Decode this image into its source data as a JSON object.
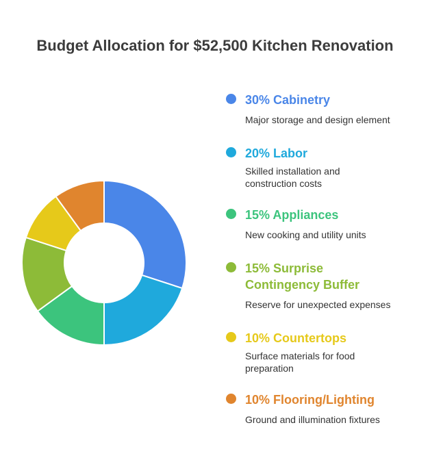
{
  "chart_data": {
    "type": "pie",
    "title": "Budget Allocation for $52,500 Kitchen Renovation",
    "categories": [
      "Cabinetry",
      "Labor",
      "Appliances",
      "Surprise Contingency Buffer",
      "Countertops",
      "Flooring/Lighting"
    ],
    "values": [
      30,
      20,
      15,
      15,
      10,
      10
    ],
    "unit": "%",
    "legend_position": "right",
    "donut": true,
    "colors": [
      "#4a86e8",
      "#1fa9dc",
      "#3cc47d",
      "#8dbb38",
      "#e6c91a",
      "#e0852e"
    ]
  },
  "legend": {
    "items": [
      {
        "label": "30% Cabinetry",
        "description": "Major storage and design element",
        "color": "#4a86e8"
      },
      {
        "label": "20% Labor",
        "description": "Skilled installation and construction costs",
        "color": "#1fa9dc"
      },
      {
        "label": "15% Appliances",
        "description": "New cooking and utility units",
        "color": "#3cc47d"
      },
      {
        "label": "15% Surprise Contingency Buffer",
        "description": "Reserve for unexpected expenses",
        "color": "#8dbb38"
      },
      {
        "label": "10% Countertops",
        "description": "Surface materials for food preparation",
        "color": "#e6c91a"
      },
      {
        "label": "10% Flooring/Lighting",
        "description": "Ground and illumination fixtures",
        "color": "#e0852e"
      }
    ]
  }
}
